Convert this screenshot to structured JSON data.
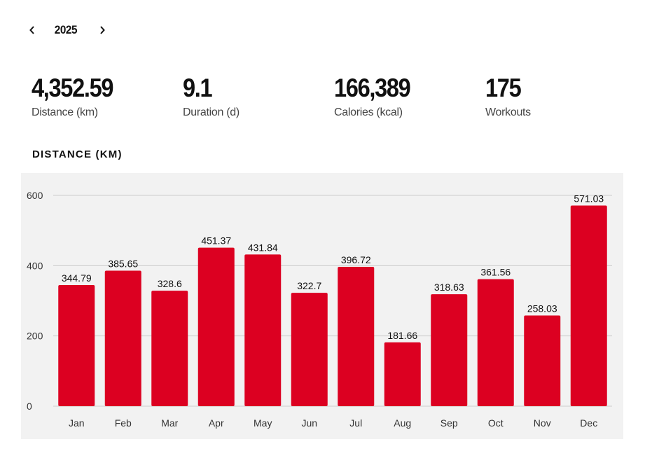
{
  "year_nav": {
    "year": "2025",
    "prev_icon": "chevron-left-icon",
    "next_icon": "chevron-right-icon"
  },
  "stats": [
    {
      "value": "4,352.59",
      "label": "Distance (km)"
    },
    {
      "value": "9.1",
      "label": "Duration (d)"
    },
    {
      "value": "166,389",
      "label": "Calories (kcal)"
    },
    {
      "value": "175",
      "label": "Workouts"
    }
  ],
  "section_title": "DISTANCE (KM)",
  "colors": {
    "bar": "#dc0021",
    "panel": "#f2f2f2",
    "grid": "#cccccc"
  },
  "chart_data": {
    "type": "bar",
    "categories": [
      "Jan",
      "Feb",
      "Mar",
      "Apr",
      "May",
      "Jun",
      "Jul",
      "Aug",
      "Sep",
      "Oct",
      "Nov",
      "Dec"
    ],
    "values": [
      344.79,
      385.65,
      328.6,
      451.37,
      431.84,
      322.7,
      396.72,
      181.66,
      318.63,
      361.56,
      258.03,
      571.03
    ],
    "labels": [
      "344.79",
      "385.65",
      "328.6",
      "451.37",
      "431.84",
      "322.7",
      "396.72",
      "181.66",
      "318.63",
      "361.56",
      "258.03",
      "571.03"
    ],
    "yticks": [
      0,
      200,
      400,
      600
    ],
    "ylim": [
      0,
      600
    ],
    "grid": true,
    "title": "",
    "xlabel": "",
    "ylabel": ""
  }
}
